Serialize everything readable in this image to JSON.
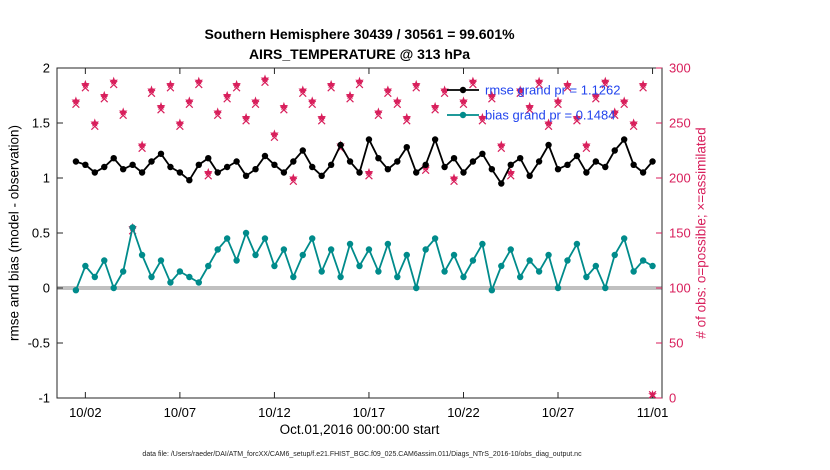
{
  "title": {
    "line1": "Southern Hemisphere 30439 / 30561 = 99.601%",
    "line2": "AIRS_TEMPERATURE @ 313 hPa"
  },
  "footer": {
    "datafile": "data file: /Users/raeder/DAI/ATM_forcXX/CAM6_setup/f.e21.FHIST_BGC.f09_025.CAM6assim.011/Diags_NTrS_2016-10/obs_diag_output.nc"
  },
  "chart_data": {
    "type": "line",
    "title": "Southern Hemisphere 30439 / 30561 = 99.601%",
    "subtitle": "AIRS_TEMPERATURE @ 313 hPa",
    "xlabel": "Oct.01,2016 00:00:00 start",
    "ylabel_left": "rmse and bias (model - observation)",
    "ylabel_right": "# of obs: o=possible; ×=assimilated",
    "xlim": [
      -0.5,
      31.5
    ],
    "ylim_left": [
      -1,
      2
    ],
    "ylim_right": [
      0,
      300
    ],
    "grid": "off",
    "legend_position": "upper-right-inside",
    "legend_text_color": "#2244ee",
    "colors": {
      "rmse": "#000000",
      "bias": "#008b8b",
      "obs": "#d81e5b",
      "zero_line": "#c0c0c0"
    },
    "xticks": {
      "values": [
        1,
        6,
        11,
        16,
        21,
        26,
        31
      ],
      "labels": [
        "10/02",
        "10/07",
        "10/12",
        "10/17",
        "10/22",
        "10/27",
        "11/01"
      ]
    },
    "yticks_left": {
      "values": [
        -1,
        -0.5,
        0,
        0.5,
        1,
        1.5,
        2
      ],
      "labels": [
        "-1",
        "-0.5",
        "0",
        "0.5",
        "1",
        "1.5",
        "2"
      ]
    },
    "yticks_right": {
      "values": [
        0,
        50,
        100,
        150,
        200,
        250,
        300
      ],
      "labels": [
        "0",
        "50",
        "100",
        "150",
        "200",
        "250",
        "300"
      ]
    },
    "x_units": "days since Oct 01 2016 00:00",
    "x": [
      0.5,
      1,
      1.5,
      2,
      2.5,
      3,
      3.5,
      4,
      4.5,
      5,
      5.5,
      6,
      6.5,
      7,
      7.5,
      8,
      8.5,
      9,
      9.5,
      10,
      10.5,
      11,
      11.5,
      12,
      12.5,
      13,
      13.5,
      14,
      14.5,
      15,
      15.5,
      16,
      16.5,
      17,
      17.5,
      18,
      18.5,
      19,
      19.5,
      20,
      20.5,
      21,
      21.5,
      22,
      22.5,
      23,
      23.5,
      24,
      24.5,
      25,
      25.5,
      26,
      26.5,
      27,
      27.5,
      28,
      28.5,
      29,
      29.5,
      30,
      30.5,
      31
    ],
    "series": [
      {
        "name": "rmse",
        "axis": "left",
        "color": "#000000",
        "marker": "dot",
        "line": true,
        "values": [
          1.15,
          1.12,
          1.05,
          1.1,
          1.18,
          1.08,
          1.12,
          1.05,
          1.15,
          1.22,
          1.1,
          1.05,
          0.98,
          1.12,
          1.18,
          1.05,
          1.1,
          1.15,
          1.02,
          1.08,
          1.2,
          1.12,
          1.05,
          1.15,
          1.25,
          1.1,
          1.02,
          1.12,
          1.3,
          1.15,
          1.05,
          1.35,
          1.18,
          1.08,
          1.15,
          1.28,
          1.05,
          1.12,
          1.35,
          1.1,
          1.18,
          1.05,
          1.15,
          1.22,
          1.08,
          0.95,
          1.12,
          1.18,
          1.02,
          1.15,
          1.3,
          1.08,
          1.12,
          1.2,
          1.05,
          1.15,
          1.1,
          1.25,
          1.35,
          1.12,
          1.05,
          1.15
        ]
      },
      {
        "name": "bias",
        "axis": "left",
        "color": "#008b8b",
        "marker": "dot",
        "line": true,
        "values": [
          -0.02,
          0.2,
          0.1,
          0.25,
          0.0,
          0.15,
          0.55,
          0.3,
          0.1,
          0.25,
          0.05,
          0.15,
          0.1,
          0.05,
          0.2,
          0.35,
          0.45,
          0.25,
          0.5,
          0.3,
          0.45,
          0.2,
          0.35,
          0.1,
          0.3,
          0.45,
          0.15,
          0.35,
          0.1,
          0.4,
          0.2,
          0.35,
          0.15,
          0.4,
          0.1,
          0.3,
          0.0,
          0.35,
          0.45,
          0.15,
          0.3,
          0.1,
          0.25,
          0.4,
          -0.02,
          0.2,
          0.35,
          0.1,
          0.25,
          0.15,
          0.3,
          0.0,
          0.25,
          0.4,
          0.1,
          0.2,
          0.0,
          0.3,
          0.45,
          0.15,
          0.25,
          0.2
        ]
      },
      {
        "name": "possible",
        "axis": "right",
        "color": "#d81e5b",
        "marker": "star",
        "line": false,
        "values": [
          270,
          285,
          250,
          275,
          288,
          260,
          155,
          230,
          280,
          265,
          285,
          250,
          270,
          288,
          205,
          260,
          275,
          285,
          255,
          270,
          290,
          240,
          265,
          200,
          280,
          270,
          255,
          285,
          230,
          275,
          288,
          205,
          260,
          280,
          270,
          255,
          285,
          210,
          265,
          280,
          200,
          270,
          288,
          255,
          275,
          230,
          205,
          280,
          265,
          288,
          250,
          270,
          285,
          255,
          230,
          275,
          288,
          260,
          270,
          250,
          285,
          3
        ]
      },
      {
        "name": "assimilated",
        "axis": "right",
        "color": "#d81e5b",
        "marker": "x",
        "line": false,
        "values": [
          267,
          282,
          247,
          272,
          285,
          257,
          152,
          227,
          277,
          262,
          282,
          247,
          267,
          285,
          202,
          257,
          272,
          282,
          252,
          267,
          287,
          237,
          262,
          197,
          277,
          267,
          252,
          282,
          227,
          272,
          285,
          202,
          257,
          277,
          267,
          252,
          282,
          207,
          262,
          277,
          197,
          267,
          285,
          252,
          272,
          227,
          202,
          277,
          262,
          285,
          247,
          267,
          282,
          252,
          227,
          272,
          285,
          257,
          267,
          247,
          282,
          3
        ]
      }
    ],
    "legend": [
      {
        "label": "rmse grand pr = 1.1262",
        "color": "#000000"
      },
      {
        "label": "bias grand pr = 0.1484",
        "color": "#008b8b"
      }
    ],
    "zero_line": {
      "value": 0,
      "color": "#c0c0c0"
    }
  }
}
